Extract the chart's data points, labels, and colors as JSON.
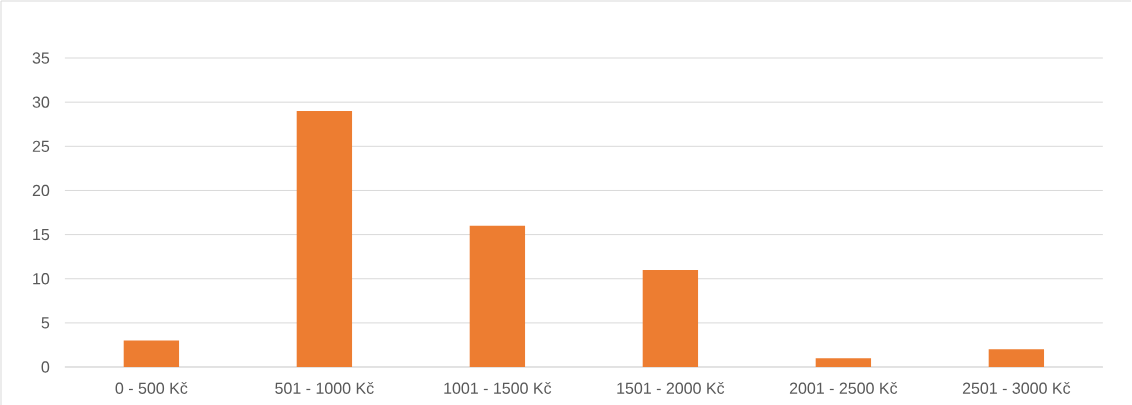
{
  "chart_data": {
    "type": "bar",
    "categories": [
      "0 - 500 Kč",
      "501 - 1000 Kč",
      "1001 - 1500 Kč",
      "1501 - 2000 Kč",
      "2001 - 2500 Kč",
      "2501 - 3000 Kč"
    ],
    "values": [
      3,
      29,
      16,
      11,
      1,
      2
    ],
    "color": "#ed7d31",
    "ylim": [
      0,
      35
    ],
    "yticks": [
      0,
      5,
      10,
      15,
      20,
      25,
      30,
      35
    ],
    "grid": "y"
  }
}
